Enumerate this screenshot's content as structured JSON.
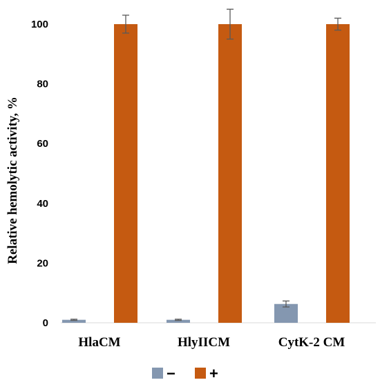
{
  "chart_data": {
    "type": "bar",
    "title": "",
    "xlabel": "",
    "ylabel": "Relative hemolytic activity, %",
    "categories": [
      "HlaCM",
      "HlyIICM",
      "CytK-2 CM"
    ],
    "series": [
      {
        "name": "−",
        "color": "#8497b0",
        "values": [
          1,
          1,
          6.3
        ],
        "errors": [
          0.2,
          0.2,
          1.0
        ]
      },
      {
        "name": "+",
        "color": "#c55a11",
        "values": [
          100,
          100,
          100
        ],
        "errors": [
          3,
          5,
          2
        ]
      }
    ],
    "ylim": [
      0,
      100
    ],
    "yticks": [
      0,
      20,
      40,
      60,
      80,
      100
    ],
    "grid": false,
    "legend_position": "bottom"
  }
}
